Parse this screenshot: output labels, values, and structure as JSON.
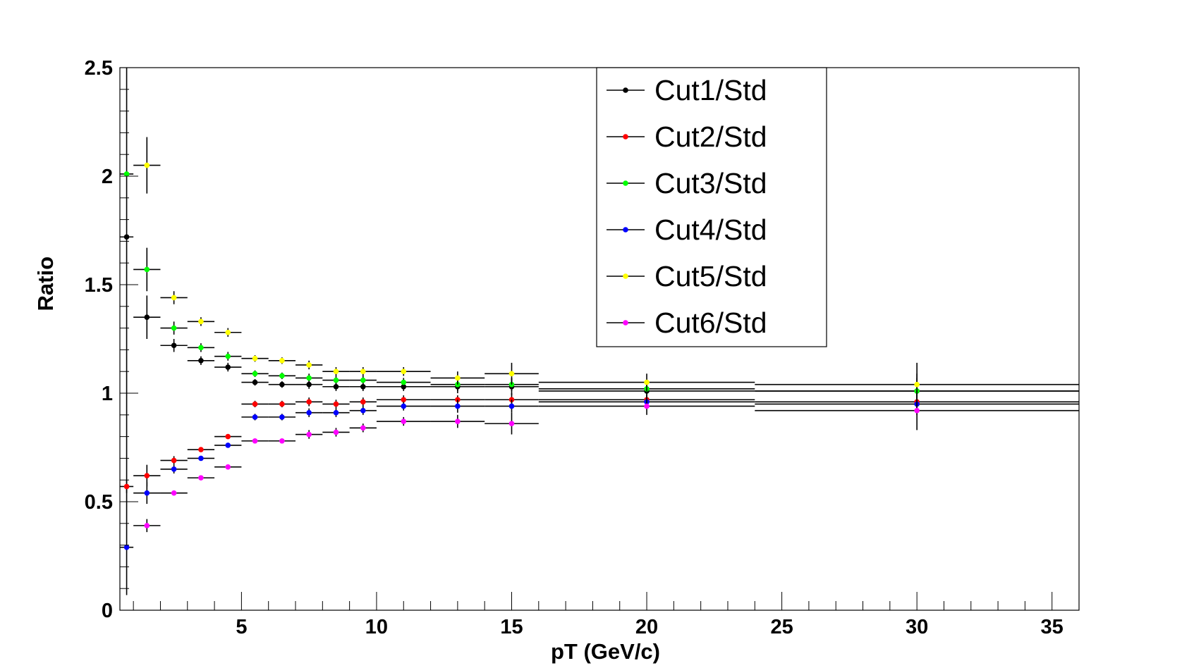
{
  "chart_data": {
    "type": "scatter",
    "title": "",
    "xlabel": "pT (GeV/c)",
    "ylabel": "Ratio",
    "xlim": [
      0.5,
      36
    ],
    "ylim": [
      0,
      2.5
    ],
    "x_ticks": [
      "5",
      "10",
      "15",
      "20",
      "25",
      "30",
      "35"
    ],
    "y_ticks": [
      "0",
      "0.5",
      "1",
      "1.5",
      "2",
      "2.5"
    ],
    "grid": false,
    "legend_position": "top-center",
    "x": [
      0.75,
      1.5,
      2.5,
      3.5,
      4.5,
      5.5,
      6.5,
      7.5,
      8.5,
      9.5,
      11,
      13,
      15,
      20,
      30
    ],
    "x_err": [
      0.25,
      0.5,
      0.5,
      0.5,
      0.5,
      0.5,
      0.5,
      0.5,
      0.5,
      0.5,
      1,
      1,
      1,
      4,
      6
    ],
    "series": [
      {
        "name": "Cut1/Std",
        "color": "#000000",
        "values": [
          1.72,
          1.35,
          1.22,
          1.15,
          1.12,
          1.05,
          1.04,
          1.04,
          1.03,
          1.03,
          1.03,
          1.03,
          1.03,
          1.01,
          1.01
        ],
        "errors": [
          1.65,
          0.1,
          0.03,
          0.02,
          0.02,
          0.015,
          0.015,
          0.02,
          0.02,
          0.02,
          0.02,
          0.03,
          0.04,
          0.04,
          0.08
        ]
      },
      {
        "name": "Cut2/Std",
        "color": "#ff0000",
        "values": [
          0.57,
          0.62,
          0.69,
          0.74,
          0.8,
          0.95,
          0.95,
          0.96,
          0.95,
          0.96,
          0.97,
          0.97,
          0.97,
          0.97,
          0.96
        ],
        "errors": [
          0.03,
          0.05,
          0.02,
          0.01,
          0.01,
          0.015,
          0.015,
          0.02,
          0.02,
          0.02,
          0.02,
          0.02,
          0.03,
          0.02,
          0.04
        ]
      },
      {
        "name": "Cut3/Std",
        "color": "#00ff00",
        "values": [
          2.01,
          1.57,
          1.3,
          1.21,
          1.17,
          1.09,
          1.08,
          1.07,
          1.06,
          1.06,
          1.05,
          1.04,
          1.04,
          1.02,
          1.01
        ],
        "errors": [
          0.0,
          0.1,
          0.03,
          0.02,
          0.02,
          0.015,
          0.015,
          0.02,
          0.02,
          0.02,
          0.02,
          0.03,
          0.03,
          0.03,
          0.06
        ]
      },
      {
        "name": "Cut4/Std",
        "color": "#0000ff",
        "values": [
          0.29,
          0.54,
          0.65,
          0.7,
          0.76,
          0.89,
          0.89,
          0.91,
          0.91,
          0.92,
          0.94,
          0.94,
          0.94,
          0.96,
          0.95
        ],
        "errors": [
          0.0,
          0.05,
          0.02,
          0.01,
          0.01,
          0.015,
          0.015,
          0.02,
          0.02,
          0.02,
          0.02,
          0.03,
          0.03,
          0.03,
          0.05
        ]
      },
      {
        "name": "Cut5/Std",
        "color": "#ffff00",
        "values": [
          null,
          2.05,
          1.44,
          1.33,
          1.28,
          1.16,
          1.15,
          1.13,
          1.1,
          1.1,
          1.1,
          1.07,
          1.09,
          1.05,
          1.04
        ],
        "errors": [
          0.0,
          0.13,
          0.03,
          0.02,
          0.02,
          0.015,
          0.015,
          0.02,
          0.02,
          0.02,
          0.02,
          0.03,
          0.05,
          0.04,
          0.1
        ]
      },
      {
        "name": "Cut6/Std",
        "color": "#ff00ff",
        "values": [
          null,
          0.39,
          0.54,
          0.61,
          0.66,
          0.78,
          0.78,
          0.81,
          0.82,
          0.84,
          0.87,
          0.87,
          0.86,
          0.94,
          0.92
        ],
        "errors": [
          0.0,
          0.03,
          0.01,
          0.01,
          0.01,
          0.01,
          0.01,
          0.02,
          0.02,
          0.02,
          0.02,
          0.03,
          0.05,
          0.04,
          0.09
        ]
      }
    ]
  }
}
